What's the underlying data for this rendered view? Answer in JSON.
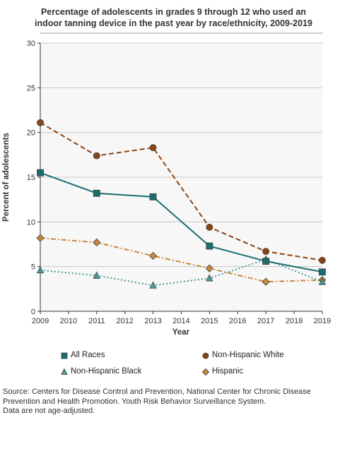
{
  "chart_data": {
    "type": "line",
    "title_lines": [
      "Percentage of adolescents in grades 9 through 12 who used an",
      "indoor tanning device in the past year by race/ethnicity, 2009-2019"
    ],
    "xlabel": "Year",
    "ylabel": "Percent of adolescents",
    "xlim": [
      2009,
      2019
    ],
    "ylim": [
      0,
      30
    ],
    "x_ticks": [
      2009,
      2010,
      2011,
      2012,
      2013,
      2014,
      2015,
      2016,
      2017,
      2018,
      2019
    ],
    "y_ticks": [
      0,
      5,
      10,
      15,
      20,
      25,
      30
    ],
    "grid": "horizontal",
    "legend_position": "bottom",
    "x": [
      2009,
      2011,
      2013,
      2015,
      2017,
      2019
    ],
    "series": [
      {
        "name": "All Races",
        "values": [
          15.5,
          13.2,
          12.8,
          7.3,
          5.6,
          4.4
        ],
        "color": "#1a6e6e",
        "dash": "solid",
        "marker": "square"
      },
      {
        "name": "Non-Hispanic White",
        "values": [
          21.1,
          17.4,
          18.3,
          9.4,
          6.7,
          5.7
        ],
        "color": "#8b4513",
        "dash": "dashed",
        "marker": "circle"
      },
      {
        "name": "Non-Hispanic Black",
        "values": [
          4.6,
          4.0,
          2.9,
          3.7,
          5.8,
          3.3
        ],
        "color": "#4a9a9a",
        "dash": "dotted",
        "marker": "triangle"
      },
      {
        "name": "Hispanic",
        "values": [
          8.2,
          7.7,
          6.2,
          4.8,
          3.3,
          3.5
        ],
        "color": "#c8893a",
        "dash": "dashdot",
        "marker": "diamond"
      }
    ]
  },
  "source_lines": [
    "Source: Centers for Disease Control and Prevention, National Center for Chronic Disease",
    "Prevention and Health Promotion. Youth Risk Behavior Surveillance System.",
    "Data are not age-adjusted."
  ]
}
